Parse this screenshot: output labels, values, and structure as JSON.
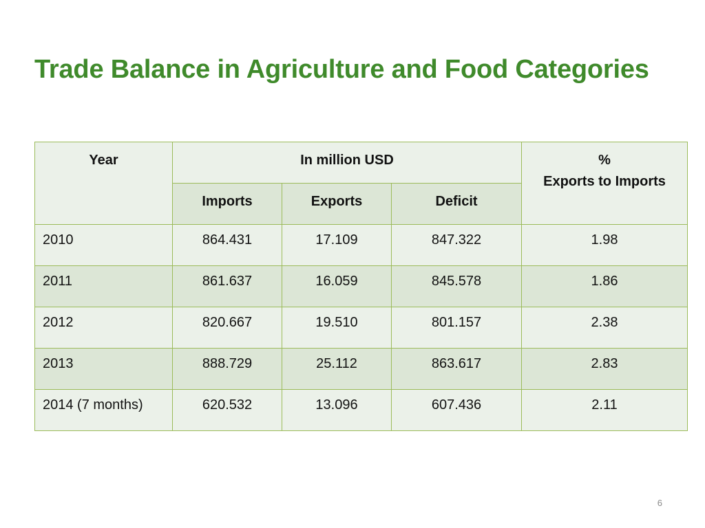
{
  "slide": {
    "title": "Trade Balance in Agriculture and Food Categories",
    "page_number": "6"
  },
  "table": {
    "headers": {
      "year": "Year",
      "group": "In million USD",
      "pct_line1": "%",
      "pct_line2": "Exports to Imports",
      "imports": "Imports",
      "exports": "Exports",
      "deficit": "Deficit"
    },
    "rows": [
      {
        "year": "2010",
        "imports": "864.431",
        "exports": "17.109",
        "deficit": "847.322",
        "pct": "1.98"
      },
      {
        "year": "2011",
        "imports": "861.637",
        "exports": "16.059",
        "deficit": "845.578",
        "pct": "1.86"
      },
      {
        "year": "2012",
        "imports": "820.667",
        "exports": "19.510",
        "deficit": "801.157",
        "pct": "2.38"
      },
      {
        "year": "2013",
        "imports": "888.729",
        "exports": "25.112",
        "deficit": "863.617",
        "pct": "2.83"
      },
      {
        "year": "2014 (7 months)",
        "imports": "620.532",
        "exports": "13.096",
        "deficit": "607.436",
        "pct": "2.11"
      }
    ]
  },
  "colors": {
    "title": "#3f8a2b",
    "border": "#9bbb59",
    "row_light": "#ebf1e9",
    "row_dark": "#dce6d6"
  }
}
